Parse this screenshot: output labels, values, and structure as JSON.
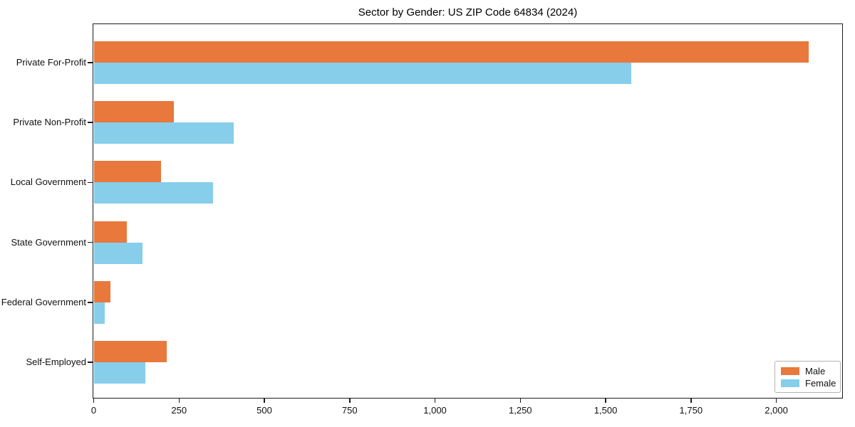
{
  "chart_data": {
    "type": "bar",
    "orientation": "horizontal",
    "title": "Sector by Gender: US ZIP Code 64834 (2024)",
    "categories": [
      "Private For-Profit",
      "Private Non-Profit",
      "Local Government",
      "State Government",
      "Federal Government",
      "Self-Employed"
    ],
    "series": [
      {
        "name": "Male",
        "color": "#E8783C",
        "values": [
          2094,
          235,
          198,
          98,
          49,
          214
        ]
      },
      {
        "name": "Female",
        "color": "#87CEEB",
        "values": [
          1574,
          410,
          349,
          142,
          33,
          151
        ]
      }
    ],
    "xlim": [
      0,
      2194
    ],
    "x_ticks": [
      0,
      250,
      500,
      750,
      1000,
      1250,
      1500,
      1750,
      2000
    ],
    "x_tick_labels": [
      "0",
      "250",
      "500",
      "750",
      "1,000",
      "1,250",
      "1,500",
      "1,750",
      "2,000"
    ],
    "xlabel": "",
    "ylabel": "",
    "grid": false,
    "legend_position": "lower right",
    "spine_color": "#1c1c1c",
    "background_color": "#ffffff"
  }
}
